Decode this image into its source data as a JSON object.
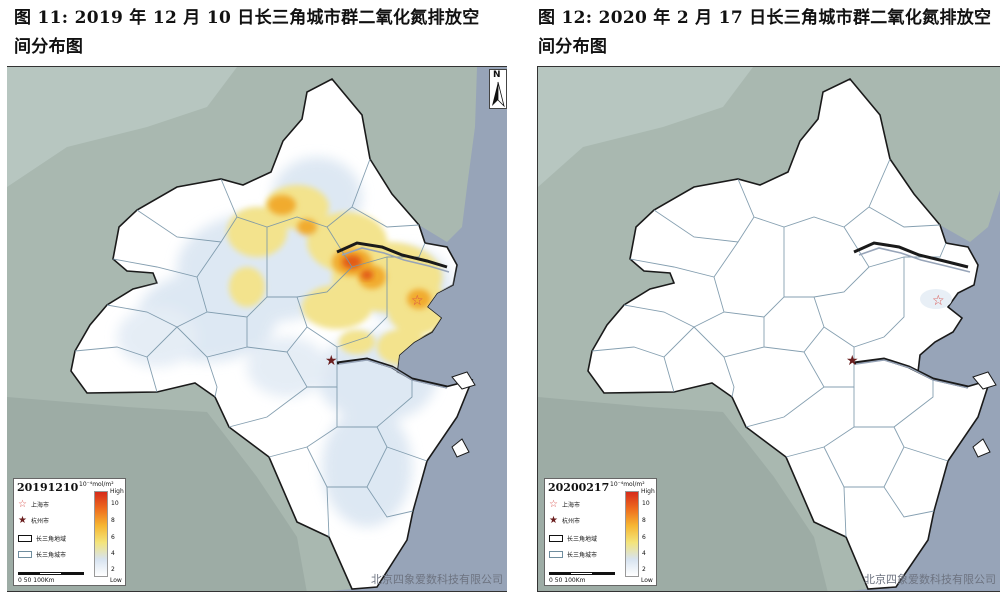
{
  "figures": [
    {
      "caption": "图 11: 2019 年 12 月 10 日长三角城市群二氧化氮排放空间分布图",
      "date": "20191210",
      "unit": "10⁻⁴mol/m²",
      "legend_high": "High",
      "legend_low": "Low",
      "ticks": [
        "10",
        "8",
        "6",
        "4",
        "2"
      ],
      "legend_items": {
        "shanghai": "上海市",
        "hangzhou": "杭州市",
        "region": "长三角地域",
        "cities": "长三角城市"
      },
      "scale": "0   50  100Km",
      "watermark": "北京四象爱数科技有限公司",
      "north": "N"
    },
    {
      "caption": "图 12: 2020 年 2 月 17 日长三角城市群二氧化氮排放空间分布图",
      "date": "20200217",
      "unit": "10⁻⁴mol/m²",
      "legend_high": "High",
      "legend_low": "Low",
      "ticks": [
        "10",
        "8",
        "6",
        "4",
        "2"
      ],
      "legend_items": {
        "shanghai": "上海市",
        "hangzhou": "杭州市",
        "region": "长三角地域",
        "cities": "长三角城市"
      },
      "scale": "0   50  100Km",
      "watermark": "北京四象爱数科技有限公司"
    }
  ],
  "colors": {
    "sea": "#97a4b8",
    "land_outside": "#aab9b3",
    "region_fill": "#ffffff",
    "low_no2": "#d8e4f1",
    "mid_no2": "#f3e38d",
    "high_no2": "#f1ab2e",
    "peak_no2": "#e25b17"
  }
}
